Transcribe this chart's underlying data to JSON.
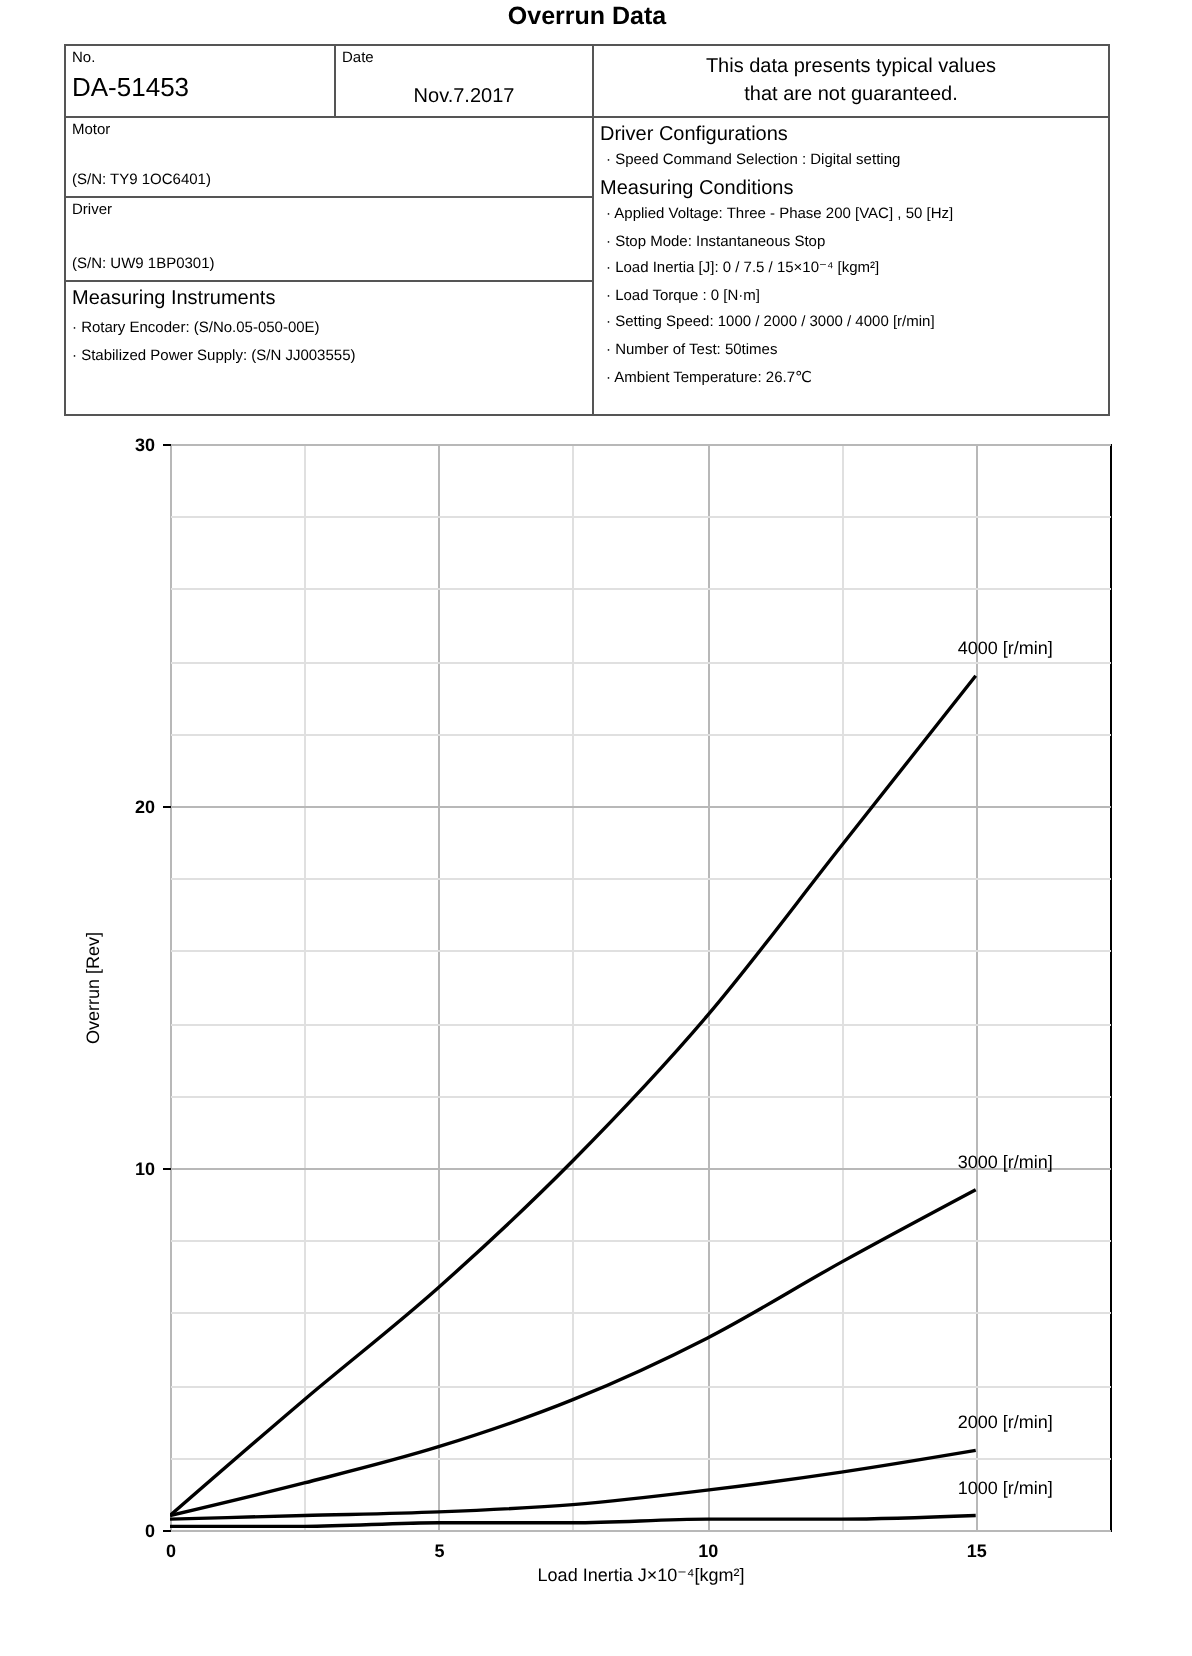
{
  "chart_data": [
    {
      "type": "other",
      "title": "Overrun Data",
      "annotations": [
        "No.",
        "DA-51453",
        "Date",
        "Nov.7.2017",
        "This data presents typical values",
        "that are not guaranteed.",
        "Motor",
        "(S/N: TY9 1OC6401)",
        "Driver",
        "(S/N: UW9 1BP0301)",
        "Measuring Instruments",
        "· Rotary Encoder: (S/No.05-050-00E)",
        "· Stabilized Power Supply: (S/N JJ003555)",
        "Driver Configurations",
        "· Speed Command Selection : Digital setting",
        "Measuring Conditions",
        "· Applied Voltage: Three - Phase 200 [VAC] , 50 [Hz]",
        "· Stop Mode: Instantaneous Stop",
        "· Load Inertia [J]: 0 / 7.5 / 15×10⁻⁴ [kgm²]",
        "· Load Torque :  0 [N·m]",
        "· Setting Speed: 1000 / 2000 / 3000 / 4000 [r/min]",
        "· Number of Test: 50times",
        "· Ambient Temperature: 26.7℃"
      ]
    },
    {
      "type": "line",
      "xlabel": "Load Inertia J×10⁻⁴[kgm²]",
      "ylabel": "Overrun [Rev]",
      "x": [
        0,
        2.5,
        5,
        7.5,
        10,
        12.5,
        15
      ],
      "series": [
        {
          "name": "4000 [r/min]",
          "color": "#000000",
          "values": [
            0.4,
            3.6,
            6.7,
            10.2,
            14.2,
            18.9,
            23.6
          ]
        },
        {
          "name": "3000 [r/min]",
          "color": "#000000",
          "values": [
            0.4,
            1.3,
            2.3,
            3.6,
            5.3,
            7.4,
            9.4
          ]
        },
        {
          "name": "2000 [r/min]",
          "color": "#000000",
          "values": [
            0.3,
            0.4,
            0.5,
            0.7,
            1.1,
            1.6,
            2.2
          ]
        },
        {
          "name": "1000 [r/min]",
          "color": "#000000",
          "values": [
            0.1,
            0.1,
            0.2,
            0.2,
            0.3,
            0.3,
            0.4
          ]
        }
      ],
      "xlim": [
        0,
        17.5
      ],
      "xticks": [
        0,
        {
          "value": 2.5,
          "label": null
        },
        5,
        {
          "value": 7.5,
          "label": null
        },
        10,
        {
          "value": 12.5,
          "label": null
        },
        15
      ],
      "ylim": [
        0,
        30
      ],
      "yticks": [
        0,
        {
          "value": 2,
          "label": null
        },
        {
          "value": 4,
          "label": null
        },
        {
          "value": 6,
          "label": null
        },
        {
          "value": 8,
          "label": null
        },
        10,
        {
          "value": 12,
          "label": null
        },
        {
          "value": 14,
          "label": null
        },
        {
          "value": 16,
          "label": null
        },
        {
          "value": 18,
          "label": null
        },
        20,
        {
          "value": 22,
          "label": null
        },
        {
          "value": 24,
          "label": null
        },
        {
          "value": 26,
          "label": null
        },
        {
          "value": 28,
          "label": null
        },
        30
      ],
      "grid": true,
      "marker": "none",
      "line_style": "solid"
    }
  ]
}
